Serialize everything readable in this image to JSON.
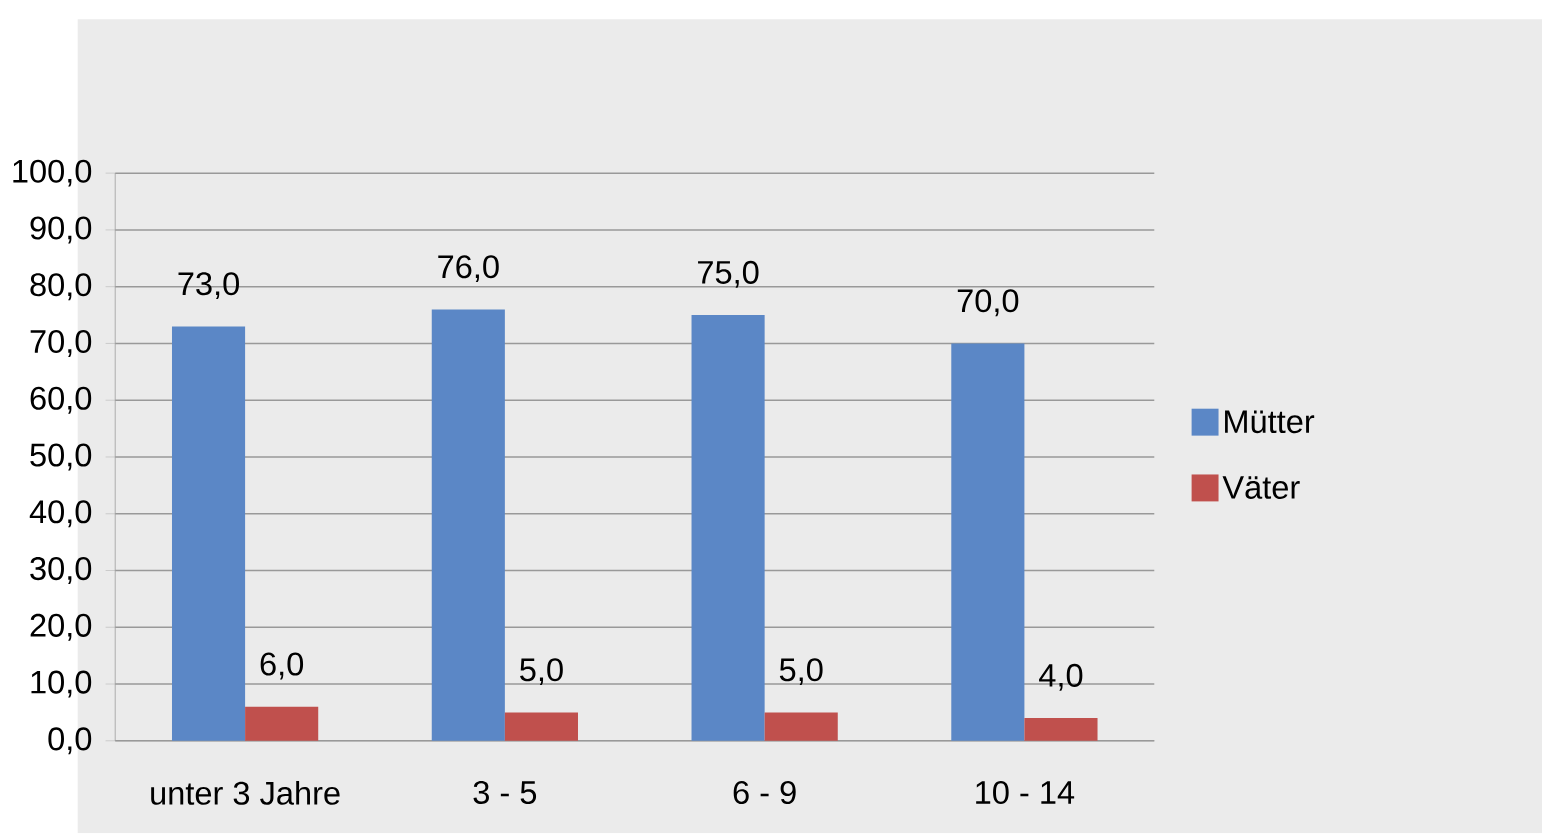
{
  "chart_data": {
    "type": "bar",
    "categories": [
      "unter 3 Jahre",
      "3 - 5",
      "6 - 9",
      "10 - 14"
    ],
    "series": [
      {
        "name": "Mütter",
        "color": "#5b87c6",
        "values": [
          73,
          76,
          75,
          70
        ],
        "value_labels": [
          "73,0",
          "76,0",
          "75,0",
          "70,0"
        ]
      },
      {
        "name": "Väter",
        "color": "#c0504d",
        "values": [
          6,
          5,
          5,
          4
        ],
        "value_labels": [
          "6,0",
          "5,0",
          "5,0",
          "4,0"
        ]
      }
    ],
    "ylim": [
      0,
      100
    ],
    "yticks": [
      {
        "value": 0,
        "label": "0,0"
      },
      {
        "value": 10,
        "label": "10,0"
      },
      {
        "value": 20,
        "label": "20,0"
      },
      {
        "value": 30,
        "label": "30,0"
      },
      {
        "value": 40,
        "label": "40,0"
      },
      {
        "value": 50,
        "label": "50,0"
      },
      {
        "value": 60,
        "label": "60,0"
      },
      {
        "value": 70,
        "label": "70,0"
      },
      {
        "value": 80,
        "label": "80,0"
      },
      {
        "value": 90,
        "label": "90,0"
      },
      {
        "value": 100,
        "label": "100,0"
      }
    ],
    "grid": "y",
    "legend": "right"
  }
}
